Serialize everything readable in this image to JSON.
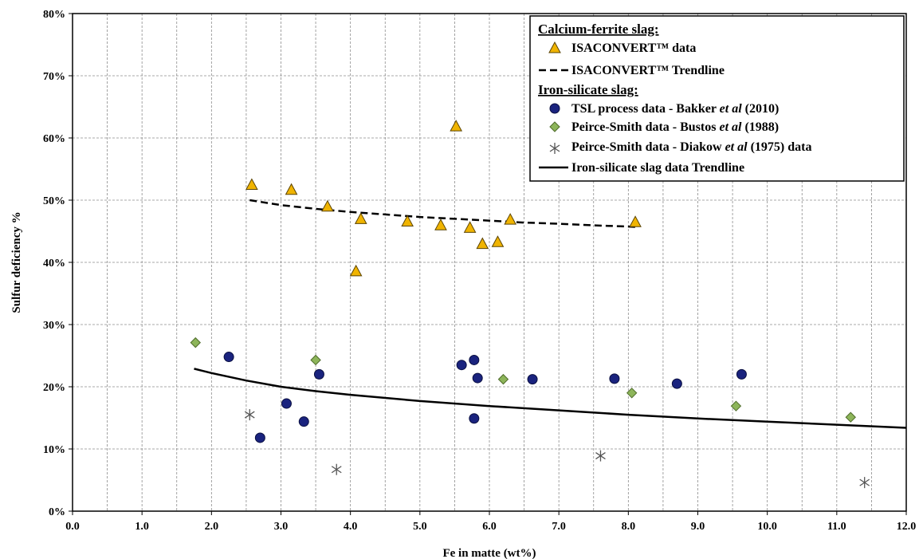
{
  "chart_data": {
    "type": "scatter",
    "xlabel": "Fe in matte (wt%)",
    "ylabel": "Sulfur deficiency %",
    "xlim": [
      0,
      12
    ],
    "ylim": [
      0,
      80
    ],
    "x_ticks": [
      "0.0",
      "1.0",
      "2.0",
      "3.0",
      "4.0",
      "5.0",
      "6.0",
      "7.0",
      "8.0",
      "9.0",
      "10.0",
      "11.0",
      "12.0"
    ],
    "x_tick_values": [
      0,
      1,
      2,
      3,
      4,
      5,
      6,
      7,
      8,
      9,
      10,
      11,
      12
    ],
    "y_ticks": [
      "0%",
      "10%",
      "20%",
      "30%",
      "40%",
      "50%",
      "60%",
      "70%",
      "80%"
    ],
    "y_tick_values": [
      0,
      10,
      20,
      30,
      40,
      50,
      60,
      70,
      80
    ],
    "x_gridline_step": 0.5,
    "y_gridline_step": 10,
    "grid": true,
    "legend_position": "top-right",
    "groups": [
      {
        "header": "Calcium-ferrite slag:"
      },
      {
        "header": "Iron-silicate slag:"
      }
    ],
    "series": [
      {
        "name": "ISACONVERT™ data",
        "group": 0,
        "kind": "points",
        "marker": "triangle",
        "color": "#F0B400",
        "stroke": "#5a4300",
        "points": [
          [
            2.58,
            52.5
          ],
          [
            3.15,
            51.7
          ],
          [
            3.67,
            49.0
          ],
          [
            4.15,
            47.0
          ],
          [
            4.08,
            38.6
          ],
          [
            4.82,
            46.6
          ],
          [
            5.3,
            46.0
          ],
          [
            5.52,
            61.9
          ],
          [
            5.72,
            45.6
          ],
          [
            5.9,
            43.0
          ],
          [
            6.12,
            43.3
          ],
          [
            6.3,
            46.9
          ],
          [
            8.1,
            46.5
          ]
        ]
      },
      {
        "name": "ISACONVERT™ Trendline",
        "group": 0,
        "kind": "line",
        "style": "dashed",
        "color": "#000000",
        "points": [
          [
            2.55,
            50.0
          ],
          [
            3.0,
            49.2
          ],
          [
            3.5,
            48.6
          ],
          [
            4.0,
            48.1
          ],
          [
            4.5,
            47.7
          ],
          [
            5.0,
            47.3
          ],
          [
            5.5,
            47.0
          ],
          [
            6.0,
            46.7
          ],
          [
            6.5,
            46.4
          ],
          [
            7.0,
            46.2
          ],
          [
            7.5,
            45.95
          ],
          [
            8.0,
            45.75
          ],
          [
            8.1,
            45.7
          ]
        ]
      },
      {
        "name": "TSL process data - Bakker et al (2010)",
        "group": 1,
        "kind": "points",
        "marker": "circle",
        "color": "#1a237e",
        "stroke": "#0a0f40",
        "points": [
          [
            2.25,
            24.8
          ],
          [
            2.7,
            11.8
          ],
          [
            3.08,
            17.3
          ],
          [
            3.33,
            14.4
          ],
          [
            3.55,
            22.0
          ],
          [
            5.6,
            23.5
          ],
          [
            5.78,
            24.3
          ],
          [
            5.83,
            21.4
          ],
          [
            5.78,
            14.9
          ],
          [
            6.62,
            21.2
          ],
          [
            7.8,
            21.3
          ],
          [
            8.7,
            20.5
          ],
          [
            9.63,
            22.0
          ]
        ]
      },
      {
        "name": "Peirce-Smith data - Bustos et al (1988)",
        "group": 1,
        "kind": "points",
        "marker": "diamond",
        "color": "#8db55a",
        "stroke": "#4e6b2a",
        "points": [
          [
            1.77,
            27.1
          ],
          [
            3.5,
            24.3
          ],
          [
            6.2,
            21.2
          ],
          [
            8.05,
            19.0
          ],
          [
            9.55,
            16.9
          ],
          [
            11.2,
            15.1
          ]
        ]
      },
      {
        "name": "Peirce-Smith data - Diakow et al (1975) data",
        "group": 1,
        "kind": "points",
        "marker": "asterisk",
        "color": "#555555",
        "stroke": "#555555",
        "points": [
          [
            2.55,
            15.5
          ],
          [
            3.8,
            6.7
          ],
          [
            7.6,
            8.9
          ],
          [
            11.4,
            4.6
          ]
        ]
      },
      {
        "name": "Iron-silicate slag data Trendline",
        "group": 1,
        "kind": "line",
        "style": "solid",
        "color": "#000000",
        "points": [
          [
            1.75,
            22.9
          ],
          [
            2.0,
            22.2
          ],
          [
            2.5,
            21.0
          ],
          [
            3.0,
            20.0
          ],
          [
            3.5,
            19.3
          ],
          [
            4.0,
            18.7
          ],
          [
            5.0,
            17.7
          ],
          [
            6.0,
            16.9
          ],
          [
            7.0,
            16.2
          ],
          [
            8.0,
            15.5
          ],
          [
            9.0,
            14.9
          ],
          [
            10.0,
            14.4
          ],
          [
            11.0,
            13.9
          ],
          [
            12.0,
            13.4
          ]
        ]
      }
    ],
    "legend": {
      "labels": {
        "isaconvert_data": "ISACONVERT™ data",
        "isaconvert_trend": "ISACONVERT™ Trendline",
        "bakker_pre": "TSL process data - Bakker ",
        "bakker_italic": "et al",
        "bakker_post": " (2010)",
        "bustos_pre": "Peirce-Smith data - Bustos ",
        "bustos_italic": "et al",
        "bustos_post": " (1988)",
        "diakow_pre": "Peirce-Smith data - Diakow ",
        "diakow_italic": "et al",
        "diakow_post": " (1975) data",
        "silicate_trend": "Iron-silicate slag data Trendline"
      }
    }
  }
}
